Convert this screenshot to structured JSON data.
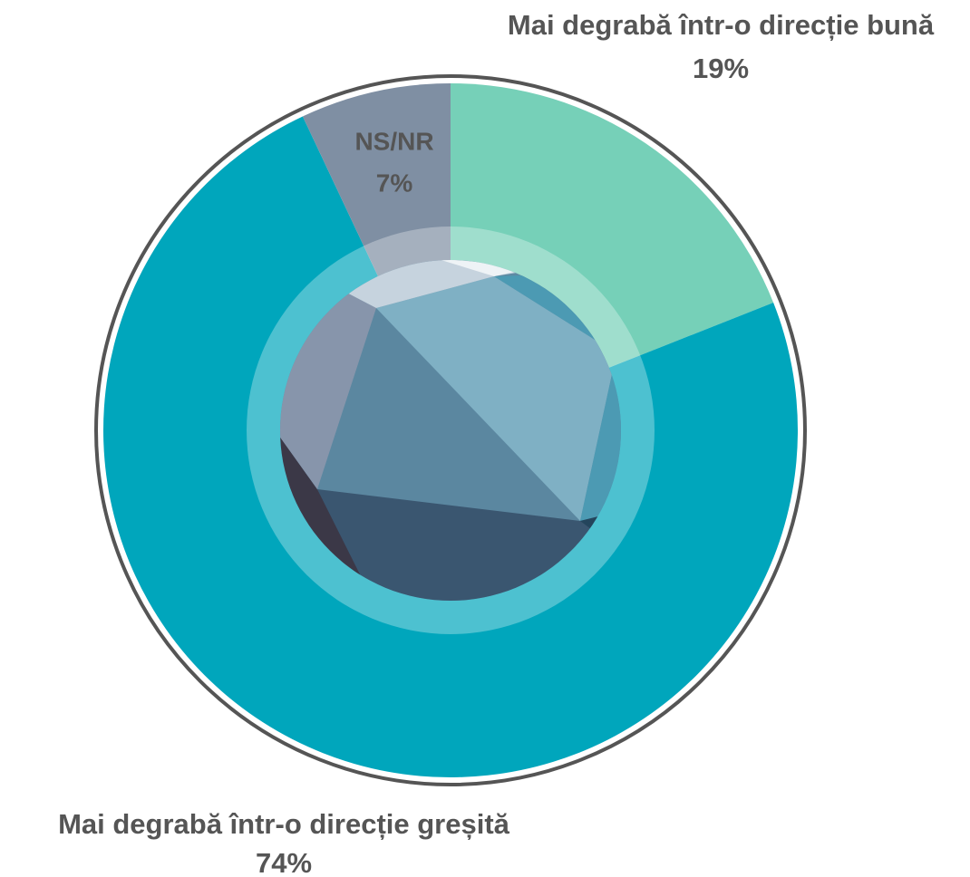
{
  "chart_data": {
    "type": "pie",
    "categories": [
      "Mai degrabă într-o direcție bună",
      "Mai degrabă într-o direcție greșită",
      "NS/NR"
    ],
    "values": [
      19,
      74,
      7
    ],
    "value_labels": [
      "19%",
      "74%",
      "7%"
    ],
    "colors": [
      "#76d0b8",
      "#00a6bc",
      "#7f8fa3"
    ]
  }
}
